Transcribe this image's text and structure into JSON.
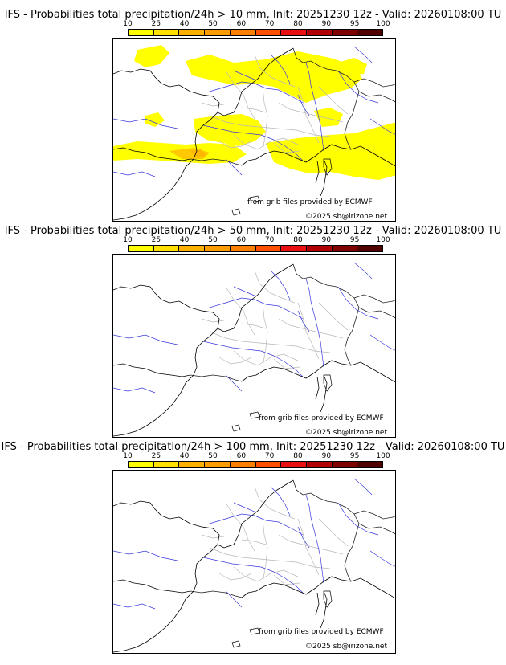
{
  "colorbar": {
    "ticks": [
      "10",
      "25",
      "40",
      "50",
      "60",
      "70",
      "80",
      "90",
      "95",
      "100"
    ],
    "colors": [
      "#ffff00",
      "#ffe000",
      "#ffb000",
      "#ff9c00",
      "#ff8000",
      "#ff5000",
      "#e81010",
      "#b00000",
      "#800000",
      "#500000"
    ]
  },
  "panels": [
    {
      "title": "IFS - Probabilities total precipitation/24h > 10 mm, Init: 20251230 12z - Valid: 20260108:00 TU",
      "credit_source": "from grib files provided by ECMWF",
      "credit_copyright": "©2025 sb@irizone.net",
      "has_precip": true
    },
    {
      "title": "IFS - Probabilities total precipitation/24h > 50 mm, Init: 20251230 12z - Valid: 20260108:00 TU",
      "credit_source": "from grib files provided by ECMWF",
      "credit_copyright": "©2025 sb@irizone.net",
      "has_precip": false
    },
    {
      "title": "IFS - Probabilities total precipitation/24h > 100 mm, Init: 20251230 12z - Valid: 20260108:00 TU",
      "credit_source": "from grib files provided by ECMWF",
      "credit_copyright": "©2025 sb@irizone.net",
      "has_precip": false
    }
  ]
}
